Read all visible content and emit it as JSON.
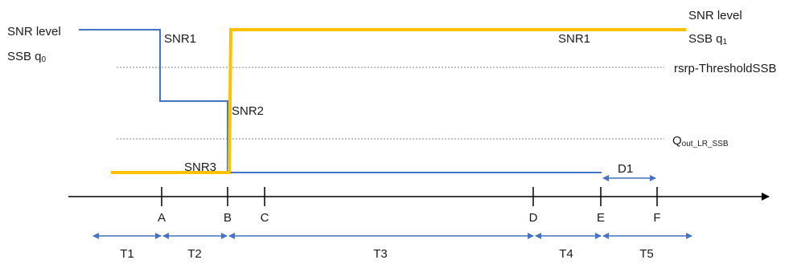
{
  "signals": {
    "q0": {
      "label_top": "SNR level",
      "label_bottom": "SSB q",
      "label_bottom_sub": "0",
      "color": "#4472C4"
    },
    "q1": {
      "label_top": "SNR level",
      "label_bottom": "SSB q",
      "label_bottom_sub": "1",
      "color": "#FFC000"
    }
  },
  "levels": {
    "snr1_left": "SNR1",
    "snr1_right": "SNR1",
    "snr2": "SNR2",
    "snr3": "SNR3"
  },
  "thresholds": {
    "rsrp": "rsrp-ThresholdSSB",
    "qout_main": "Q",
    "qout_sub": "out_LR_SSB"
  },
  "timeline": {
    "points": [
      "A",
      "B",
      "C",
      "D",
      "E",
      "F"
    ],
    "intervals": [
      "T1",
      "T2",
      "T3",
      "T4",
      "T5"
    ],
    "duration_label": "D1"
  },
  "colors": {
    "axis": "#000000",
    "interval_arrow": "#4472C4",
    "threshold_line": "#808080"
  }
}
